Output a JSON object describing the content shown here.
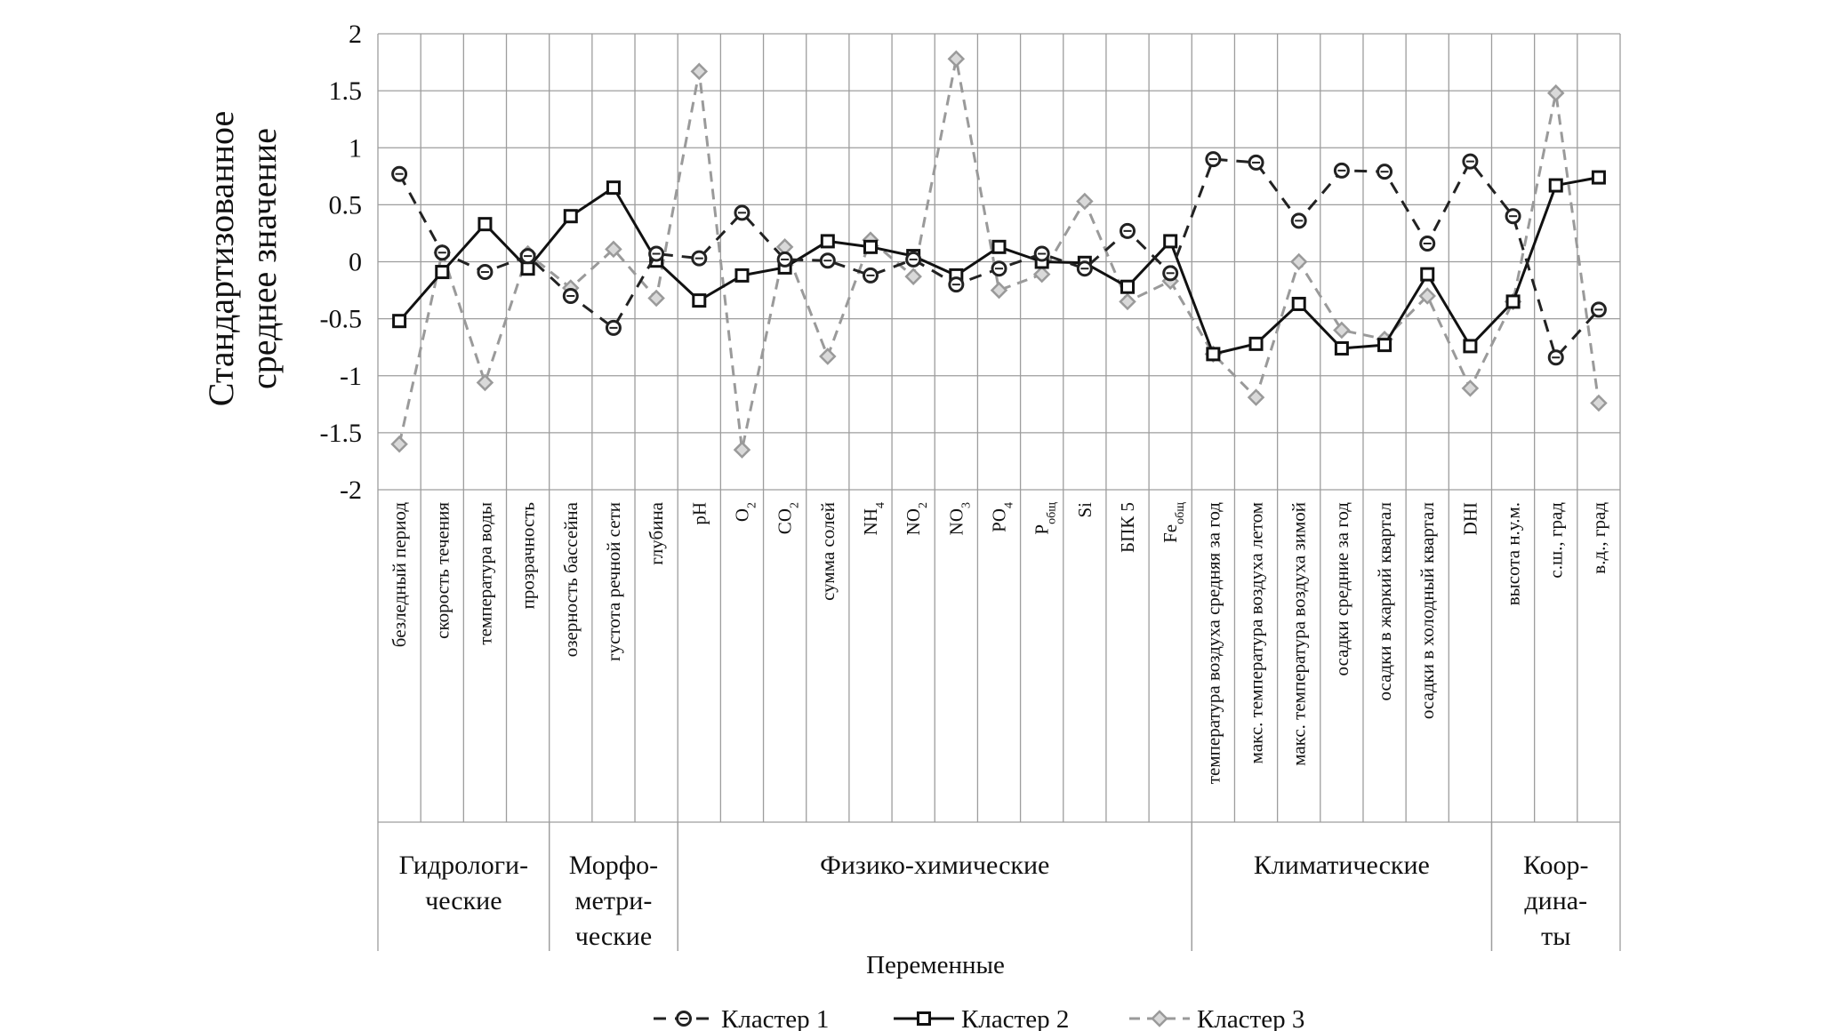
{
  "chart_data": {
    "type": "line",
    "title": "",
    "ylabel_lines": [
      "Стандартизованное",
      "среднее значение"
    ],
    "xlabel": "Переменные",
    "ylim": [
      -2,
      2
    ],
    "yticks": [
      2,
      1.5,
      1,
      0.5,
      0,
      -0.5,
      -1,
      -1.5,
      -2
    ],
    "ytick_labels": [
      "2",
      "1.5",
      "1",
      "0.5",
      "0",
      "-0.5",
      "-1",
      "-1.5",
      "-2"
    ],
    "grid": "vertical",
    "legend_position": "bottom",
    "categories": [
      {
        "main": "безледный период"
      },
      {
        "main": "скорость течения"
      },
      {
        "main": "температура воды"
      },
      {
        "main": "прозрачность"
      },
      {
        "main": "озерность бассейна"
      },
      {
        "main": "густота речной сети"
      },
      {
        "main": "глубина"
      },
      {
        "main": "pH"
      },
      {
        "main": "O",
        "sub": "2"
      },
      {
        "main": "CO",
        "sub": "2"
      },
      {
        "main": "сумма солей"
      },
      {
        "main": "NH",
        "sub": "4"
      },
      {
        "main": "NO",
        "sub": "2"
      },
      {
        "main": "NO",
        "sub": "3"
      },
      {
        "main": "PO",
        "sub": "4"
      },
      {
        "main": "P",
        "sub": "общ"
      },
      {
        "main": "Si"
      },
      {
        "main": "БПК 5"
      },
      {
        "main": "Fe",
        "sub": "общ"
      },
      {
        "main": "температура воздуха средняя за год"
      },
      {
        "main": "макс. температура воздуха летом"
      },
      {
        "main": "макс. температура воздуха зимой"
      },
      {
        "main": "осадки средние за год"
      },
      {
        "main": "осадки в жаркий квартал"
      },
      {
        "main": "осадки в холодный квартал"
      },
      {
        "main": "DHI"
      },
      {
        "main": "высота н.у.м."
      },
      {
        "main": "с.ш., град"
      },
      {
        "main": "в.д., град"
      }
    ],
    "groups": [
      {
        "lines": [
          "Гидрологи-",
          "ческие"
        ],
        "start": 0,
        "end": 3
      },
      {
        "lines": [
          "Морфо-",
          "метри-",
          "ческие"
        ],
        "start": 4,
        "end": 6
      },
      {
        "lines": [
          "Физико-химические"
        ],
        "start": 7,
        "end": 18
      },
      {
        "lines": [
          "Климатические"
        ],
        "start": 19,
        "end": 25
      },
      {
        "lines": [
          "Коор-",
          "дина-",
          "ты"
        ],
        "start": 26,
        "end": 28
      }
    ],
    "series": [
      {
        "name": "Кластер 1",
        "color": "#222222",
        "dash": "14 10",
        "marker": "circle",
        "values": [
          0.77,
          0.08,
          -0.09,
          0.05,
          -0.3,
          -0.58,
          0.07,
          0.03,
          0.43,
          0.02,
          0.01,
          -0.12,
          0.02,
          -0.2,
          -0.06,
          0.07,
          -0.06,
          0.27,
          -0.1,
          0.9,
          0.87,
          0.36,
          0.8,
          0.79,
          0.16,
          0.88,
          0.4,
          -0.84,
          -0.42
        ]
      },
      {
        "name": "Кластер 2",
        "color": "#111111",
        "dash": "",
        "marker": "square",
        "values": [
          -0.52,
          -0.09,
          0.33,
          -0.06,
          0.4,
          0.65,
          0.01,
          -0.34,
          -0.12,
          -0.05,
          0.18,
          0.13,
          0.05,
          -0.12,
          0.13,
          0.0,
          -0.01,
          -0.22,
          0.18,
          -0.81,
          -0.72,
          -0.37,
          -0.76,
          -0.73,
          -0.11,
          -0.74,
          -0.35,
          0.67,
          0.74
        ]
      },
      {
        "name": "Кластер 3",
        "color": "#9a9a9a",
        "dash": "12 8",
        "marker": "diamond",
        "values": [
          -1.6,
          0.08,
          -1.06,
          0.07,
          -0.23,
          0.11,
          -0.32,
          1.67,
          -1.65,
          0.13,
          -0.83,
          0.19,
          -0.13,
          1.78,
          -0.25,
          -0.11,
          0.53,
          -0.35,
          -0.17,
          -0.81,
          -1.19,
          0.0,
          -0.6,
          -0.68,
          -0.3,
          -1.11,
          -0.35,
          1.48,
          -1.24
        ]
      }
    ]
  }
}
